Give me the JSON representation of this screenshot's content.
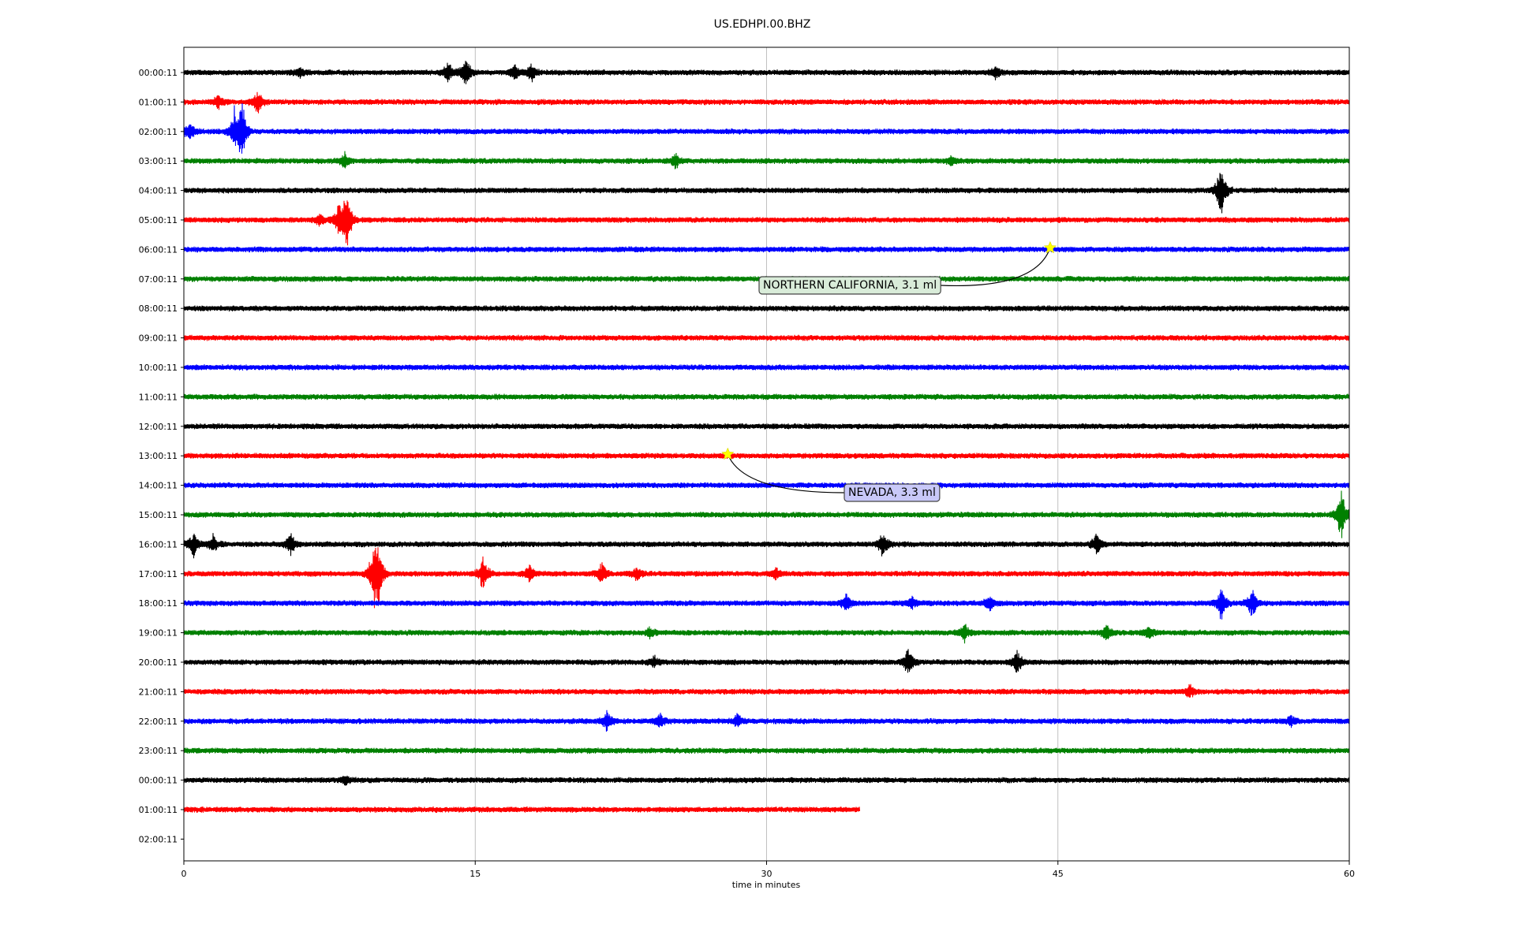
{
  "chart_data": {
    "type": "line",
    "title": "US.EDHPI.00.BHZ",
    "xlabel": "time in minutes",
    "ylabel": "",
    "xlim": [
      0,
      60
    ],
    "xticks": [
      "0",
      "15",
      "30",
      "45",
      "60"
    ],
    "grid_x": true,
    "row_labels": [
      "00:00:11",
      "01:00:11",
      "02:00:11",
      "03:00:11",
      "04:00:11",
      "05:00:11",
      "06:00:11",
      "07:00:11",
      "08:00:11",
      "09:00:11",
      "10:00:11",
      "11:00:11",
      "12:00:11",
      "13:00:11",
      "14:00:11",
      "15:00:11",
      "16:00:11",
      "17:00:11",
      "18:00:11",
      "19:00:11",
      "20:00:11",
      "21:00:11",
      "22:00:11",
      "23:00:11",
      "00:00:11",
      "01:00:11",
      "02:00:11"
    ],
    "row_colors": [
      "#000000",
      "#ff0000",
      "#0000ff",
      "#008000"
    ],
    "last_trace_end_minutes": 34.8,
    "trace_count": 26,
    "events": [
      {
        "label": "NORTHERN CALIFORNIA, 3.1 ml",
        "row": 6,
        "minute": 44.6,
        "box_color": "#d9ecd9"
      },
      {
        "label": "NEVADA, 3.3 ml",
        "row": 13,
        "minute": 28.0,
        "box_color": "#c8c8f8"
      }
    ],
    "marker_color": "#ffff00",
    "bursts": [
      {
        "row": 0,
        "minute": 13.6,
        "amp": 0.35
      },
      {
        "row": 0,
        "minute": 14.5,
        "amp": 0.55
      },
      {
        "row": 0,
        "minute": 17.0,
        "amp": 0.25
      },
      {
        "row": 0,
        "minute": 17.9,
        "amp": 0.3
      },
      {
        "row": 0,
        "minute": 41.8,
        "amp": 0.2
      },
      {
        "row": 0,
        "minute": 6.0,
        "amp": 0.15
      },
      {
        "row": 1,
        "minute": 1.8,
        "amp": 0.25
      },
      {
        "row": 1,
        "minute": 3.8,
        "amp": 0.45
      },
      {
        "row": 2,
        "minute": 2.6,
        "amp": 0.7
      },
      {
        "row": 2,
        "minute": 3.0,
        "amp": 1.0
      },
      {
        "row": 2,
        "minute": 0.3,
        "amp": 0.4
      },
      {
        "row": 3,
        "minute": 8.3,
        "amp": 0.3
      },
      {
        "row": 3,
        "minute": 25.3,
        "amp": 0.25
      },
      {
        "row": 3,
        "minute": 39.5,
        "amp": 0.15
      },
      {
        "row": 4,
        "minute": 53.4,
        "amp": 1.0
      },
      {
        "row": 5,
        "minute": 8.0,
        "amp": 0.6
      },
      {
        "row": 5,
        "minute": 8.4,
        "amp": 1.0
      },
      {
        "row": 5,
        "minute": 7.0,
        "amp": 0.2
      },
      {
        "row": 15,
        "minute": 59.6,
        "amp": 0.9
      },
      {
        "row": 16,
        "minute": 0.5,
        "amp": 0.4
      },
      {
        "row": 16,
        "minute": 1.5,
        "amp": 0.3
      },
      {
        "row": 16,
        "minute": 5.5,
        "amp": 0.4
      },
      {
        "row": 16,
        "minute": 36.0,
        "amp": 0.45
      },
      {
        "row": 16,
        "minute": 47.0,
        "amp": 0.4
      },
      {
        "row": 17,
        "minute": 9.8,
        "amp": 0.9
      },
      {
        "row": 17,
        "minute": 10.0,
        "amp": 1.0
      },
      {
        "row": 17,
        "minute": 15.4,
        "amp": 0.6
      },
      {
        "row": 17,
        "minute": 17.8,
        "amp": 0.3
      },
      {
        "row": 17,
        "minute": 21.5,
        "amp": 0.35
      },
      {
        "row": 17,
        "minute": 23.3,
        "amp": 0.25
      },
      {
        "row": 17,
        "minute": 30.5,
        "amp": 0.2
      },
      {
        "row": 18,
        "minute": 34.1,
        "amp": 0.3
      },
      {
        "row": 18,
        "minute": 37.5,
        "amp": 0.2
      },
      {
        "row": 18,
        "minute": 41.5,
        "amp": 0.3
      },
      {
        "row": 18,
        "minute": 53.4,
        "amp": 0.55
      },
      {
        "row": 18,
        "minute": 55.0,
        "amp": 0.5
      },
      {
        "row": 19,
        "minute": 40.2,
        "amp": 0.3
      },
      {
        "row": 19,
        "minute": 47.5,
        "amp": 0.3
      },
      {
        "row": 19,
        "minute": 49.7,
        "amp": 0.25
      },
      {
        "row": 19,
        "minute": 24.0,
        "amp": 0.15
      },
      {
        "row": 20,
        "minute": 37.3,
        "amp": 0.5
      },
      {
        "row": 20,
        "minute": 42.9,
        "amp": 0.45
      },
      {
        "row": 20,
        "minute": 24.2,
        "amp": 0.2
      },
      {
        "row": 21,
        "minute": 51.8,
        "amp": 0.25
      },
      {
        "row": 22,
        "minute": 21.8,
        "amp": 0.35
      },
      {
        "row": 22,
        "minute": 24.5,
        "amp": 0.25
      },
      {
        "row": 22,
        "minute": 28.5,
        "amp": 0.2
      },
      {
        "row": 22,
        "minute": 57.0,
        "amp": 0.2
      },
      {
        "row": 24,
        "minute": 8.3,
        "amp": 0.15
      }
    ]
  }
}
